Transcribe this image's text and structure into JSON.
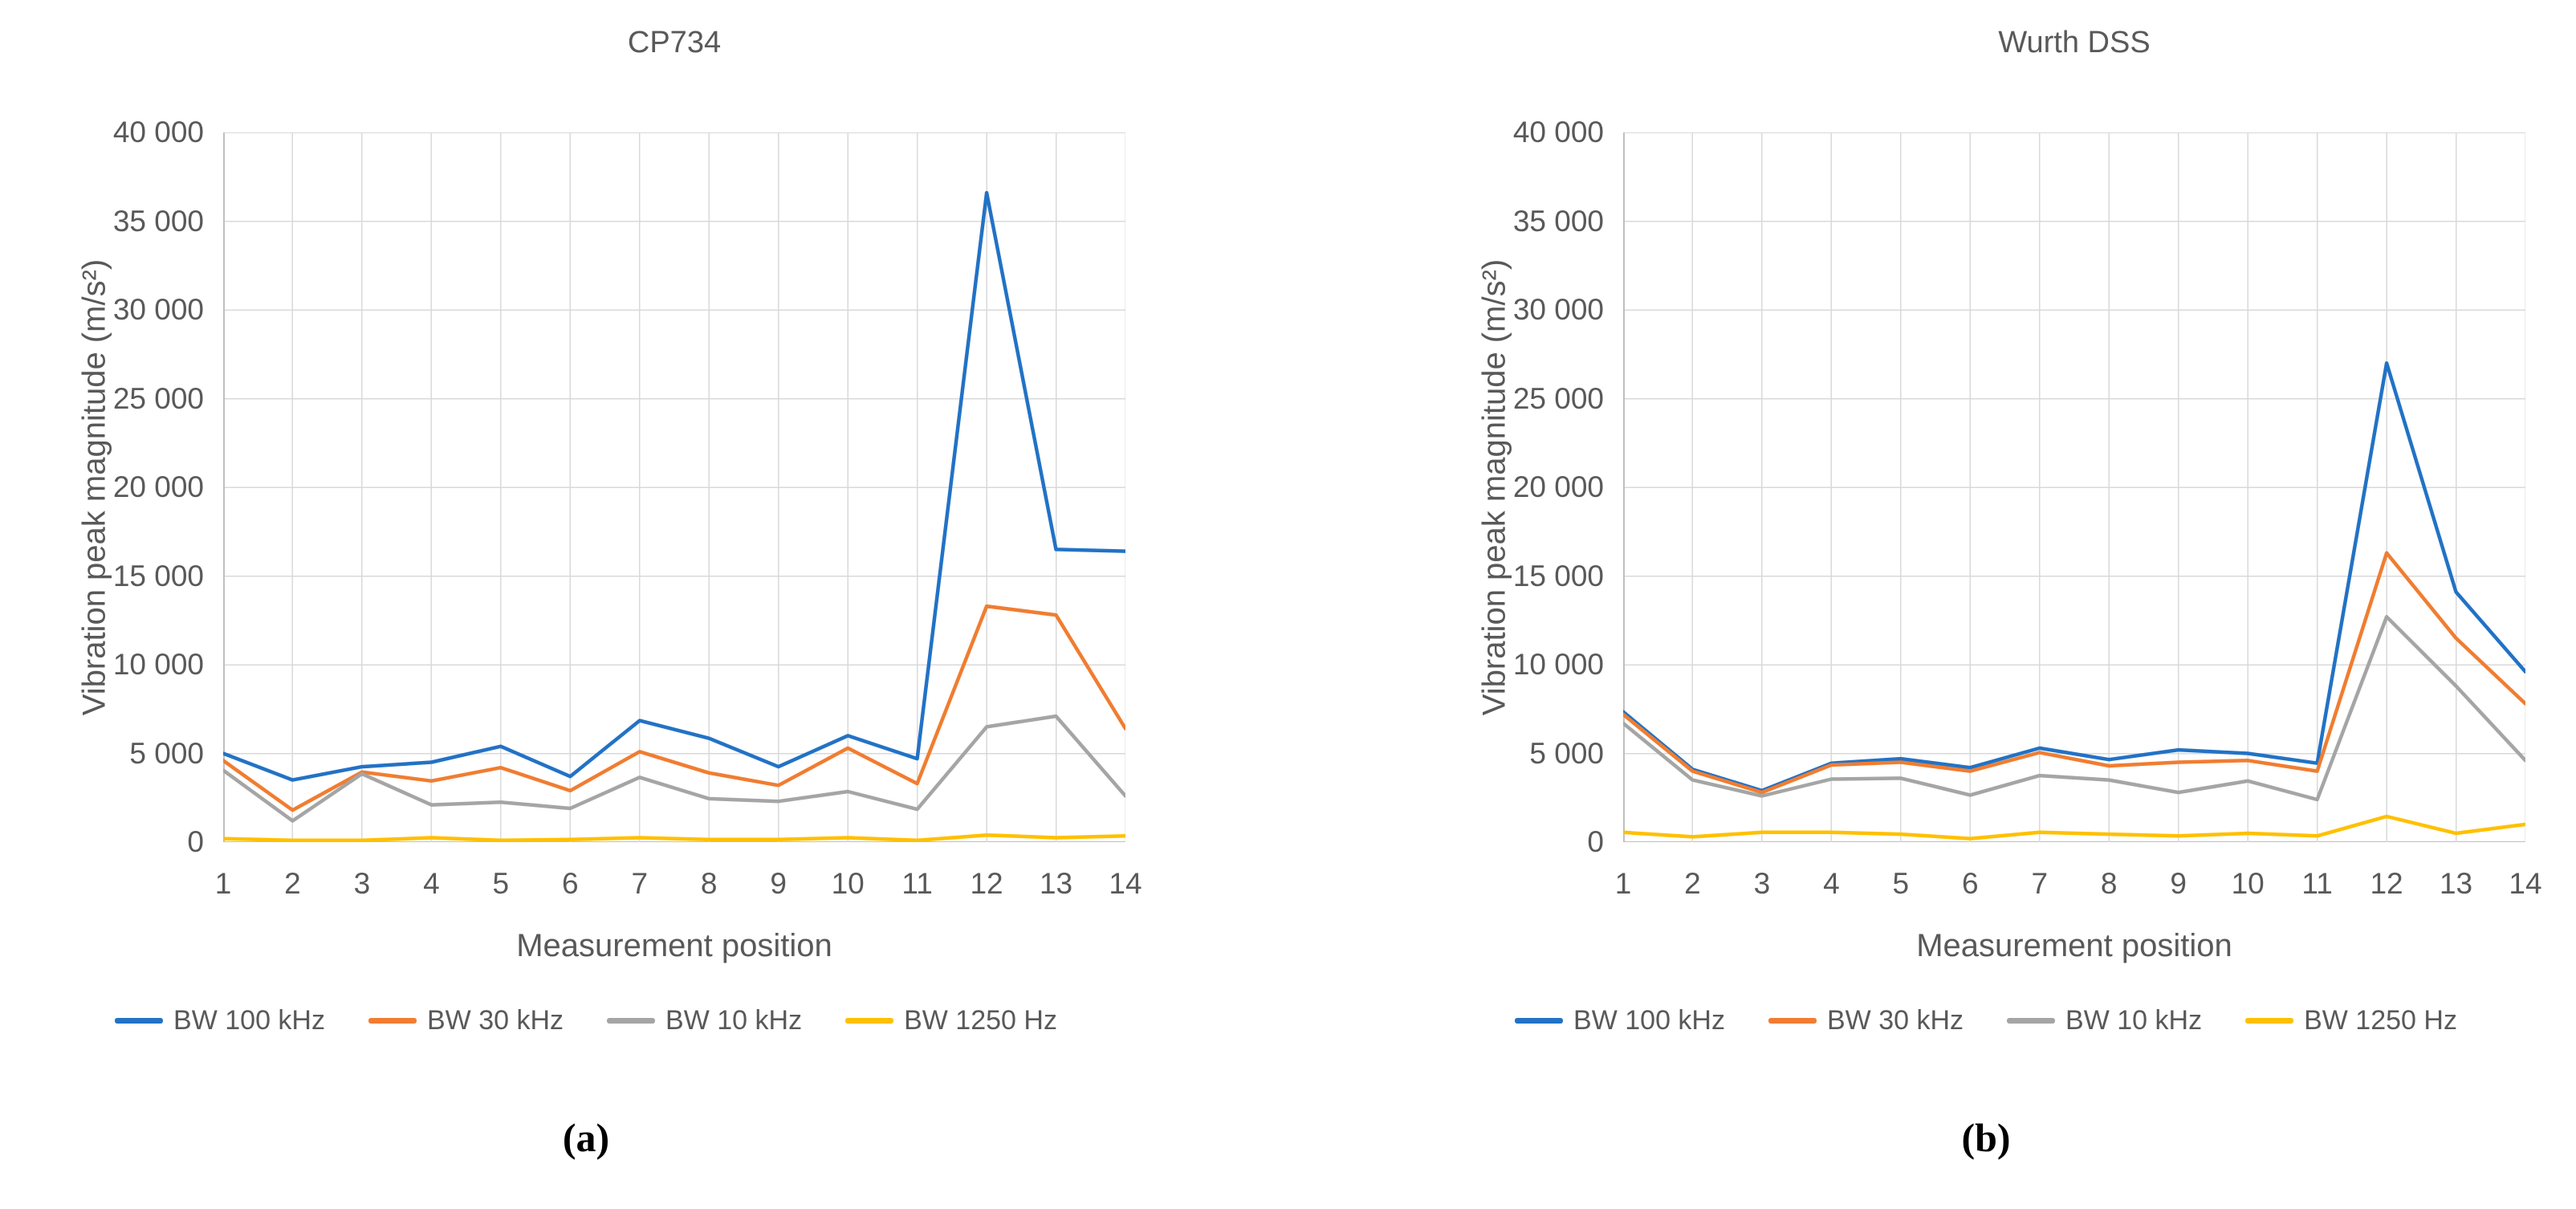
{
  "figures": [
    {
      "title": "CP734",
      "caption": "(a)",
      "y_axis_label": "Vibration peak magnitude (m/s²)",
      "x_axis_label": "Measurement position",
      "y_ticks": [
        "40 000",
        "35 000",
        "30 000",
        "25 000",
        "20 000",
        "15 000",
        "10 000",
        "5 000",
        "0"
      ]
    },
    {
      "title": "Wurth DSS",
      "caption": "(b)",
      "y_axis_label": "Vibration peak magnitude (m/s²)",
      "x_axis_label": "Measurement position",
      "y_ticks": [
        "40 000",
        "35 000",
        "30 000",
        "25 000",
        "20 000",
        "15 000",
        "10 000",
        "5 000",
        "0"
      ]
    }
  ],
  "chart_data": [
    {
      "type": "line",
      "title": "CP734",
      "xlabel": "Measurement position",
      "ylabel": "Vibration peak magnitude (m/s²)",
      "ylim": [
        0,
        40000
      ],
      "grid": true,
      "legend_position": "bottom",
      "categories": [
        "1",
        "2",
        "3",
        "4",
        "5",
        "6",
        "7",
        "8",
        "9",
        "10",
        "11",
        "12",
        "13",
        "14"
      ],
      "series": [
        {
          "name": "BW 100 kHz",
          "color": "#2272C5",
          "values": [
            5000,
            3500,
            4250,
            4500,
            5400,
            3700,
            6850,
            5850,
            4250,
            6000,
            4700,
            36600,
            16500,
            16400
          ]
        },
        {
          "name": "BW 30 kHz",
          "color": "#F07D31",
          "values": [
            4600,
            1800,
            3950,
            3450,
            4200,
            2900,
            5100,
            3900,
            3200,
            5300,
            3300,
            13300,
            12800,
            6400
          ]
        },
        {
          "name": "BW 10 kHz",
          "color": "#A5A5A5",
          "values": [
            4050,
            1200,
            3850,
            2100,
            2250,
            1900,
            3650,
            2450,
            2300,
            2850,
            1850,
            6500,
            7100,
            2600
          ]
        },
        {
          "name": "BW 1250 Hz",
          "color": "#FFC000",
          "values": [
            200,
            100,
            100,
            250,
            100,
            150,
            250,
            150,
            150,
            250,
            100,
            400,
            250,
            350
          ]
        }
      ]
    },
    {
      "type": "line",
      "title": "Wurth DSS",
      "xlabel": "Measurement position",
      "ylabel": "Vibration peak magnitude (m/s²)",
      "ylim": [
        0,
        40000
      ],
      "grid": true,
      "legend_position": "bottom",
      "categories": [
        "1",
        "2",
        "3",
        "4",
        "5",
        "6",
        "7",
        "8",
        "9",
        "10",
        "11",
        "12",
        "13",
        "14"
      ],
      "series": [
        {
          "name": "BW 100 kHz",
          "color": "#2272C5",
          "values": [
            7350,
            4100,
            2900,
            4450,
            4700,
            4200,
            5300,
            4650,
            5200,
            5000,
            4450,
            27000,
            14100,
            9600
          ]
        },
        {
          "name": "BW 30 kHz",
          "color": "#F07D31",
          "values": [
            7200,
            4000,
            2800,
            4350,
            4500,
            4000,
            5050,
            4300,
            4500,
            4600,
            4000,
            16300,
            11500,
            7800
          ]
        },
        {
          "name": "BW 10 kHz",
          "color": "#A5A5A5",
          "values": [
            6700,
            3500,
            2600,
            3550,
            3600,
            2650,
            3750,
            3500,
            2800,
            3450,
            2400,
            12700,
            8800,
            4600
          ]
        },
        {
          "name": "BW 1250 Hz",
          "color": "#FFC000",
          "values": [
            550,
            300,
            550,
            550,
            450,
            200,
            550,
            450,
            350,
            500,
            350,
            1450,
            500,
            1000
          ]
        }
      ]
    }
  ],
  "style": {
    "gridline_color": "#D9D9D9",
    "axis_line_color": "#BFBFBF",
    "text_color": "#595959"
  }
}
